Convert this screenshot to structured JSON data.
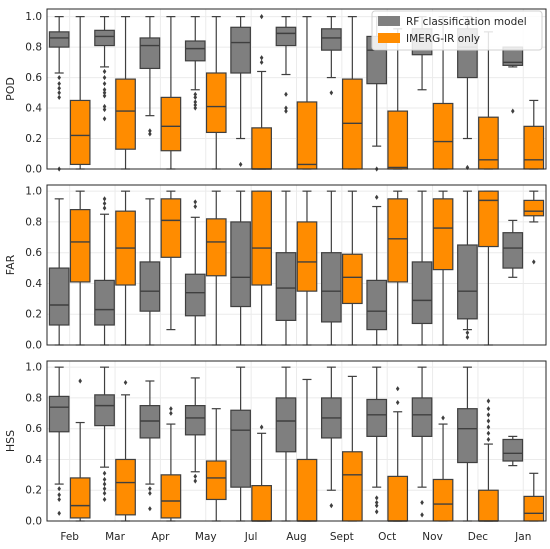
{
  "chart_data": {
    "type": "box",
    "categories": [
      "Feb",
      "Mar",
      "Apr",
      "May",
      "Jul",
      "Aug",
      "Sept",
      "Oct",
      "Nov",
      "Dec",
      "Jan"
    ],
    "legend": {
      "placement": "top-right",
      "entries": [
        {
          "name": "RF classification model",
          "color": "#7f7f7f"
        },
        {
          "name": "IMERG-IR only",
          "color": "#ff8c00"
        }
      ]
    },
    "colors": {
      "rf": "#7f7f7f",
      "imerg": "#ff8c00"
    },
    "grid": true,
    "panels": [
      {
        "ylabel": "POD",
        "ylim": [
          0,
          1.05
        ],
        "yticks": [
          "0.0",
          "0.2",
          "0.4",
          "0.6",
          "0.8",
          "1.0"
        ],
        "series": [
          {
            "name": "RF classification model",
            "boxes": [
              {
                "q1": 0.8,
                "med": 0.86,
                "q3": 0.9,
                "wlo": 0.63,
                "whi": 1.0,
                "fliers": [
                  0.6,
                  0.56,
                  0.53,
                  0.5,
                  0.47,
                  0.0
                ]
              },
              {
                "q1": 0.81,
                "med": 0.87,
                "q3": 0.91,
                "wlo": 0.67,
                "whi": 1.0,
                "fliers": [
                  0.64,
                  0.6,
                  0.56,
                  0.52,
                  0.5,
                  0.48,
                  0.41,
                  0.39,
                  0.33
                ]
              },
              {
                "q1": 0.66,
                "med": 0.81,
                "q3": 0.86,
                "wlo": 0.35,
                "whi": 1.0,
                "fliers": [
                  0.25,
                  0.23
                ]
              },
              {
                "q1": 0.71,
                "med": 0.79,
                "q3": 0.84,
                "wlo": 0.52,
                "whi": 1.0,
                "fliers": [
                  0.49,
                  0.47,
                  0.44,
                  0.42,
                  0.4
                ]
              },
              {
                "q1": 0.63,
                "med": 0.83,
                "q3": 0.93,
                "wlo": 0.2,
                "whi": 1.0,
                "fliers": [
                  0.03
                ]
              },
              {
                "q1": 0.81,
                "med": 0.89,
                "q3": 0.93,
                "wlo": 0.62,
                "whi": 1.0,
                "fliers": [
                  0.49,
                  0.4,
                  0.38
                ]
              },
              {
                "q1": 0.78,
                "med": 0.86,
                "q3": 0.92,
                "wlo": 0.6,
                "whi": 1.0,
                "fliers": [
                  0.5
                ]
              },
              {
                "q1": 0.56,
                "med": 0.78,
                "q3": 0.87,
                "wlo": 0.15,
                "whi": 1.0,
                "fliers": [
                  0.0
                ]
              },
              {
                "q1": 0.75,
                "med": 0.85,
                "q3": 0.92,
                "wlo": 0.52,
                "whi": 1.0,
                "fliers": []
              },
              {
                "q1": 0.6,
                "med": 0.8,
                "q3": 0.92,
                "wlo": 0.2,
                "whi": 1.0,
                "fliers": [
                  0.01
                ]
              },
              {
                "q1": 0.68,
                "med": 0.7,
                "q3": 0.8,
                "wlo": 0.67,
                "whi": 0.8,
                "fliers": [
                  0.38
                ]
              }
            ]
          },
          {
            "name": "IMERG-IR only",
            "boxes": [
              {
                "q1": 0.03,
                "med": 0.22,
                "q3": 0.45,
                "wlo": 0.0,
                "whi": 1.0,
                "fliers": []
              },
              {
                "q1": 0.13,
                "med": 0.38,
                "q3": 0.59,
                "wlo": 0.0,
                "whi": 1.0,
                "fliers": []
              },
              {
                "q1": 0.12,
                "med": 0.28,
                "q3": 0.47,
                "wlo": 0.0,
                "whi": 1.0,
                "fliers": []
              },
              {
                "q1": 0.24,
                "med": 0.41,
                "q3": 0.63,
                "wlo": 0.0,
                "whi": 1.0,
                "fliers": []
              },
              {
                "q1": 0.0,
                "med": 0.0,
                "q3": 0.27,
                "wlo": 0.0,
                "whi": 0.64,
                "fliers": [
                  0.7,
                  0.73,
                  1.0
                ]
              },
              {
                "q1": 0.0,
                "med": 0.03,
                "q3": 0.44,
                "wlo": 0.0,
                "whi": 1.0,
                "fliers": []
              },
              {
                "q1": 0.0,
                "med": 0.3,
                "q3": 0.59,
                "wlo": 0.0,
                "whi": 1.0,
                "fliers": []
              },
              {
                "q1": 0.0,
                "med": 0.01,
                "q3": 0.38,
                "wlo": 0.0,
                "whi": 0.92,
                "fliers": []
              },
              {
                "q1": 0.0,
                "med": 0.18,
                "q3": 0.43,
                "wlo": 0.0,
                "whi": 1.0,
                "fliers": []
              },
              {
                "q1": 0.0,
                "med": 0.06,
                "q3": 0.34,
                "wlo": 0.0,
                "whi": 0.9,
                "fliers": []
              },
              {
                "q1": 0.0,
                "med": 0.06,
                "q3": 0.28,
                "wlo": 0.0,
                "whi": 0.45,
                "fliers": []
              }
            ]
          }
        ]
      },
      {
        "ylabel": "FAR",
        "ylim": [
          0,
          1.04
        ],
        "yticks": [
          "0.0",
          "0.2",
          "0.4",
          "0.6",
          "0.8",
          "1.0"
        ],
        "series": [
          {
            "name": "RF classification model",
            "boxes": [
              {
                "q1": 0.13,
                "med": 0.26,
                "q3": 0.5,
                "wlo": 0.0,
                "whi": 0.95,
                "fliers": []
              },
              {
                "q1": 0.13,
                "med": 0.23,
                "q3": 0.42,
                "wlo": 0.0,
                "whi": 0.85,
                "fliers": [
                  0.89,
                  0.92,
                  0.95
                ]
              },
              {
                "q1": 0.22,
                "med": 0.35,
                "q3": 0.54,
                "wlo": 0.0,
                "whi": 0.95,
                "fliers": []
              },
              {
                "q1": 0.19,
                "med": 0.34,
                "q3": 0.46,
                "wlo": 0.0,
                "whi": 0.83,
                "fliers": [
                  0.9,
                  0.93
                ]
              },
              {
                "q1": 0.25,
                "med": 0.44,
                "q3": 0.8,
                "wlo": 0.0,
                "whi": 1.0,
                "fliers": []
              },
              {
                "q1": 0.16,
                "med": 0.37,
                "q3": 0.6,
                "wlo": 0.0,
                "whi": 1.0,
                "fliers": []
              },
              {
                "q1": 0.15,
                "med": 0.35,
                "q3": 0.6,
                "wlo": 0.0,
                "whi": 1.0,
                "fliers": []
              },
              {
                "q1": 0.1,
                "med": 0.22,
                "q3": 0.42,
                "wlo": 0.0,
                "whi": 0.9,
                "fliers": [
                  0.96
                ]
              },
              {
                "q1": 0.14,
                "med": 0.29,
                "q3": 0.54,
                "wlo": 0.0,
                "whi": 1.0,
                "fliers": []
              },
              {
                "q1": 0.17,
                "med": 0.35,
                "q3": 0.65,
                "wlo": 0.1,
                "whi": 1.0,
                "fliers": [
                  0.08,
                  0.05
                ]
              },
              {
                "q1": 0.5,
                "med": 0.63,
                "q3": 0.73,
                "wlo": 0.44,
                "whi": 0.81,
                "fliers": []
              }
            ]
          },
          {
            "name": "IMERG-IR only",
            "boxes": [
              {
                "q1": 0.41,
                "med": 0.67,
                "q3": 0.88,
                "wlo": 0.0,
                "whi": 1.0,
                "fliers": []
              },
              {
                "q1": 0.39,
                "med": 0.63,
                "q3": 0.87,
                "wlo": 0.0,
                "whi": 1.0,
                "fliers": []
              },
              {
                "q1": 0.57,
                "med": 0.81,
                "q3": 0.95,
                "wlo": 0.1,
                "whi": 1.0,
                "fliers": []
              },
              {
                "q1": 0.45,
                "med": 0.67,
                "q3": 0.82,
                "wlo": 0.0,
                "whi": 1.0,
                "fliers": []
              },
              {
                "q1": 0.39,
                "med": 0.63,
                "q3": 1.0,
                "wlo": 0.0,
                "whi": 1.0,
                "fliers": []
              },
              {
                "q1": 0.35,
                "med": 0.54,
                "q3": 0.8,
                "wlo": 0.0,
                "whi": 1.0,
                "fliers": []
              },
              {
                "q1": 0.27,
                "med": 0.44,
                "q3": 0.59,
                "wlo": 0.0,
                "whi": 1.0,
                "fliers": []
              },
              {
                "q1": 0.41,
                "med": 0.69,
                "q3": 0.95,
                "wlo": 0.0,
                "whi": 1.0,
                "fliers": []
              },
              {
                "q1": 0.49,
                "med": 0.76,
                "q3": 0.95,
                "wlo": 0.0,
                "whi": 1.0,
                "fliers": []
              },
              {
                "q1": 0.64,
                "med": 0.94,
                "q3": 1.0,
                "wlo": 0.0,
                "whi": 1.0,
                "fliers": []
              },
              {
                "q1": 0.84,
                "med": 0.87,
                "q3": 0.94,
                "wlo": 0.8,
                "whi": 1.0,
                "fliers": [
                  0.54
                ]
              }
            ]
          }
        ]
      },
      {
        "ylabel": "HSS",
        "ylim": [
          0,
          1.04
        ],
        "yticks": [
          "0.0",
          "0.2",
          "0.4",
          "0.6",
          "0.8",
          "1.0"
        ],
        "series": [
          {
            "name": "RF classification model",
            "boxes": [
              {
                "q1": 0.58,
                "med": 0.74,
                "q3": 0.81,
                "wlo": 0.24,
                "whi": 1.0,
                "fliers": [
                  0.21,
                  0.17,
                  0.14,
                  0.05
                ]
              },
              {
                "q1": 0.62,
                "med": 0.75,
                "q3": 0.82,
                "wlo": 0.35,
                "whi": 1.0,
                "fliers": [
                  0.31,
                  0.27,
                  0.24,
                  0.21,
                  0.18,
                  0.14
                ]
              },
              {
                "q1": 0.54,
                "med": 0.65,
                "q3": 0.75,
                "wlo": 0.24,
                "whi": 0.91,
                "fliers": [
                  0.21,
                  0.18,
                  0.08
                ]
              },
              {
                "q1": 0.56,
                "med": 0.67,
                "q3": 0.75,
                "wlo": 0.32,
                "whi": 0.93,
                "fliers": [
                  0.29,
                  0.26
                ]
              },
              {
                "q1": 0.22,
                "med": 0.59,
                "q3": 0.72,
                "wlo": 0.0,
                "whi": 1.0,
                "fliers": []
              },
              {
                "q1": 0.45,
                "med": 0.65,
                "q3": 0.8,
                "wlo": 0.0,
                "whi": 1.0,
                "fliers": []
              },
              {
                "q1": 0.54,
                "med": 0.67,
                "q3": 0.8,
                "wlo": 0.2,
                "whi": 1.0,
                "fliers": [
                  0.1
                ]
              },
              {
                "q1": 0.55,
                "med": 0.69,
                "q3": 0.79,
                "wlo": 0.22,
                "whi": 1.0,
                "fliers": [
                  0.15,
                  0.12,
                  0.1,
                  0.06
                ]
              },
              {
                "q1": 0.55,
                "med": 0.69,
                "q3": 0.8,
                "wlo": 0.22,
                "whi": 1.0,
                "fliers": [
                  0.12,
                  0.04
                ]
              },
              {
                "q1": 0.38,
                "med": 0.6,
                "q3": 0.73,
                "wlo": 0.0,
                "whi": 1.0,
                "fliers": []
              },
              {
                "q1": 0.39,
                "med": 0.44,
                "q3": 0.53,
                "wlo": 0.36,
                "whi": 0.55,
                "fliers": []
              }
            ]
          },
          {
            "name": "IMERG-IR only",
            "boxes": [
              {
                "q1": 0.02,
                "med": 0.1,
                "q3": 0.28,
                "wlo": 0.0,
                "whi": 0.64,
                "fliers": [
                  0.91
                ]
              },
              {
                "q1": 0.04,
                "med": 0.25,
                "q3": 0.4,
                "wlo": 0.0,
                "whi": 0.82,
                "fliers": [
                  0.9
                ]
              },
              {
                "q1": 0.02,
                "med": 0.13,
                "q3": 0.3,
                "wlo": 0.0,
                "whi": 0.63,
                "fliers": [
                  0.7,
                  0.73
                ]
              },
              {
                "q1": 0.14,
                "med": 0.28,
                "q3": 0.39,
                "wlo": 0.0,
                "whi": 0.73,
                "fliers": []
              },
              {
                "q1": 0.0,
                "med": 0.0,
                "q3": 0.23,
                "wlo": 0.0,
                "whi": 0.57,
                "fliers": [
                  0.61
                ]
              },
              {
                "q1": 0.0,
                "med": 0.0,
                "q3": 0.4,
                "wlo": 0.0,
                "whi": 0.92,
                "fliers": []
              },
              {
                "q1": 0.0,
                "med": 0.3,
                "q3": 0.45,
                "wlo": 0.0,
                "whi": 0.94,
                "fliers": []
              },
              {
                "q1": 0.0,
                "med": 0.0,
                "q3": 0.29,
                "wlo": 0.0,
                "whi": 0.71,
                "fliers": [
                  0.77,
                  0.86
                ]
              },
              {
                "q1": 0.0,
                "med": 0.11,
                "q3": 0.27,
                "wlo": 0.0,
                "whi": 0.63,
                "fliers": [
                  0.67
                ]
              },
              {
                "q1": 0.0,
                "med": 0.0,
                "q3": 0.2,
                "wlo": 0.0,
                "whi": 0.5,
                "fliers": [
                  0.53,
                  0.57,
                  0.61,
                  0.65,
                  0.69,
                  0.73,
                  0.78
                ]
              },
              {
                "q1": 0.0,
                "med": 0.05,
                "q3": 0.16,
                "wlo": 0.0,
                "whi": 0.31,
                "fliers": []
              }
            ]
          }
        ]
      }
    ]
  }
}
